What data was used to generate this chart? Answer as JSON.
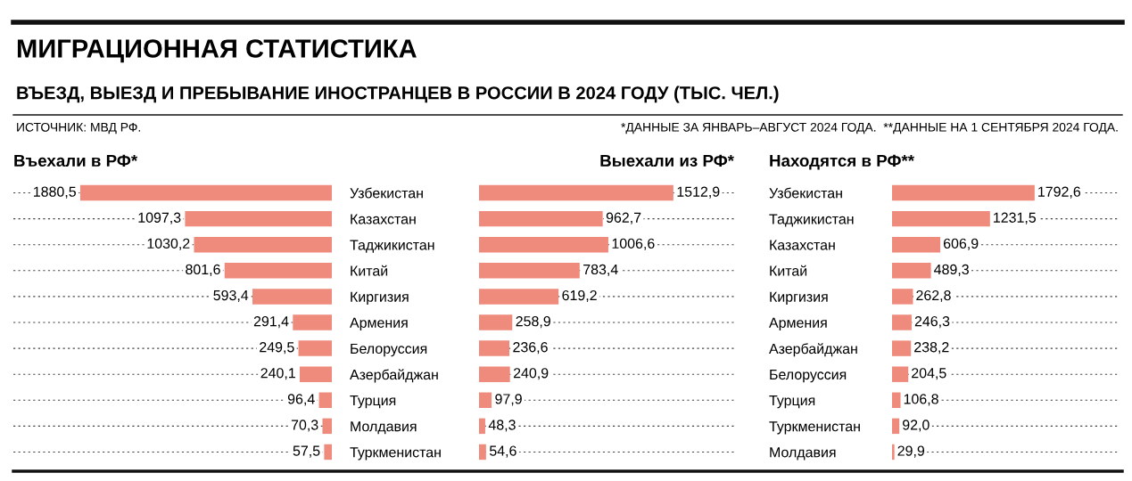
{
  "chart_data": [
    {
      "type": "other",
      "title": "МИГРАЦИОННАЯ СТАТИСТИКА",
      "subtitle": "ВЪЕЗД, ВЫЕЗД И ПРЕБЫВАНИЕ ИНОСТРАНЦЕВ В РОССИИ В 2024 ГОДУ (ТЫС. ЧЕЛ.)",
      "annotations": [
        "ИСТОЧНИК: МВД РФ.",
        "*ДАННЫЕ ЗА ЯНВАРЬ–АВГУСТ 2024 ГОДА.  **ДАННЫЕ НА 1 СЕНТЯБРЯ 2024 ГОДА."
      ]
    },
    {
      "type": "bar",
      "orientation": "horizontal",
      "title": "Въехали в РФ*",
      "grid": "y",
      "tick_labels": "y",
      "xlim": [
        2380,
        0
      ],
      "color": "#ef8b7c",
      "categories": [
        "Узбекистан",
        "Казахстан",
        "Таджикистан",
        "Китай",
        "Киргизия",
        "Армения",
        "Белоруссия",
        "Азербайджан",
        "Турция",
        "Молдавия",
        "Туркменистан"
      ],
      "values": [
        1880.5,
        1097.3,
        1030.2,
        801.6,
        593.4,
        291.4,
        249.5,
        240.1,
        96.4,
        70.3,
        57.5
      ],
      "value_labels": [
        "1880,5",
        "1097,3",
        "1030,2",
        "801,6",
        "593,4",
        "291,4",
        "249,5",
        "240,1",
        "96,4",
        "70,3",
        "57,5"
      ]
    },
    {
      "type": "bar",
      "orientation": "horizontal",
      "title": "Выехали из РФ*",
      "grid": "y",
      "tick_labels": false,
      "xlim": [
        0,
        2000
      ],
      "color": "#ef8b7c",
      "categories": [
        null,
        null,
        null,
        null,
        null,
        null,
        null,
        null,
        null,
        null,
        null
      ],
      "values": [
        1512.9,
        962.7,
        1006.6,
        783.4,
        619.2,
        258.9,
        236.6,
        240.9,
        97.9,
        48.3,
        54.6
      ],
      "value_labels": [
        "1512,9",
        "962,7",
        "1006,6",
        "783,4",
        "619,2",
        "258,9",
        "236,6",
        "240,9",
        "97,9",
        "48,3",
        "54,6"
      ]
    },
    {
      "type": "bar",
      "orientation": "horizontal",
      "title": "Находятся в РФ**",
      "grid": "y",
      "tick_labels": "y",
      "xlim": [
        0,
        2860
      ],
      "color": "#ef8b7c",
      "categories": [
        "Узбекистан",
        "Таджикистан",
        "Казахстан",
        "Китай",
        "Киргизия",
        "Армения",
        "Азербайджан",
        "Белоруссия",
        "Турция",
        "Туркменистан",
        "Молдавия"
      ],
      "values": [
        1792.6,
        1231.5,
        606.9,
        489.3,
        262.8,
        246.3,
        238.2,
        204.5,
        106.8,
        92.0,
        29.9
      ],
      "value_labels": [
        "1792,6",
        "1231,5",
        "606,9",
        "489,3",
        "262,8",
        "246,3",
        "238,2",
        "204,5",
        "106,8",
        "92,0",
        "29,9"
      ]
    }
  ]
}
